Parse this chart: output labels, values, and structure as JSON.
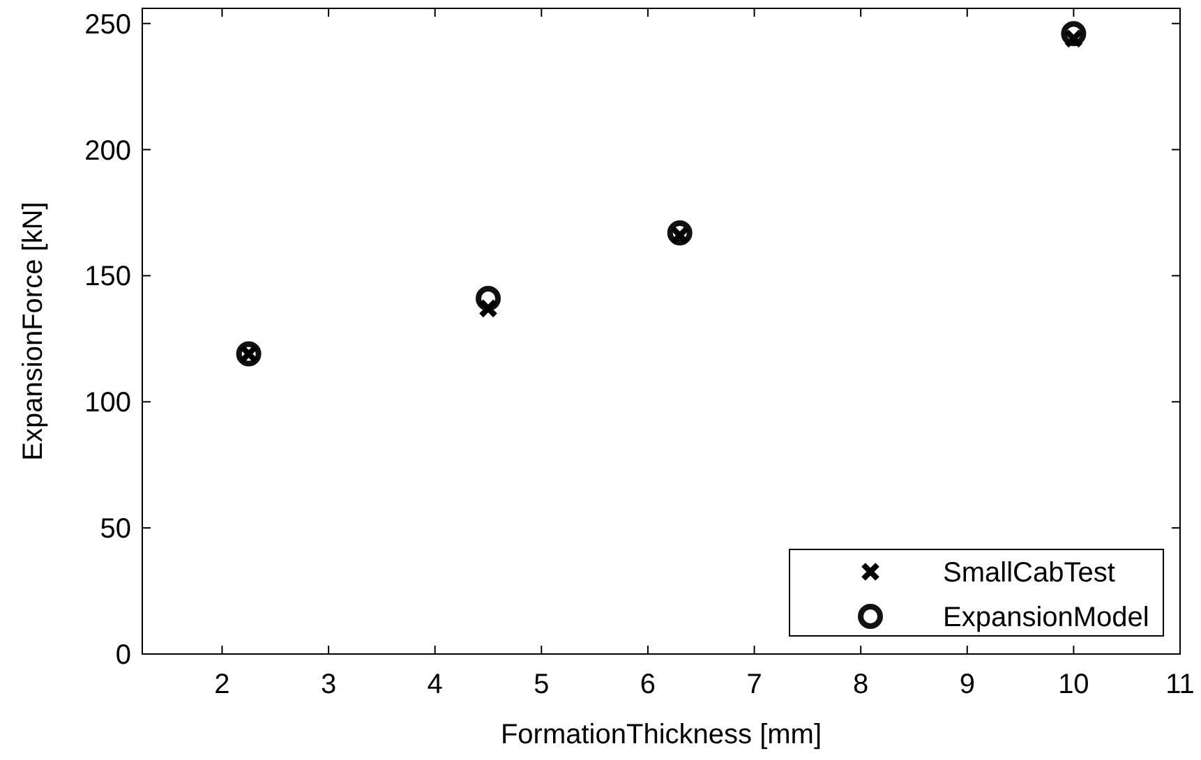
{
  "chart_data": {
    "type": "scatter",
    "xlabel": "FormationThickness [mm]",
    "ylabel": "ExpansionForce [kN]",
    "x": [
      2.25,
      4.5,
      6.3,
      10
    ],
    "series": [
      {
        "name": "SmallCabTest",
        "color": "#000000",
        "marker": "cross",
        "values": [
          119,
          137,
          166,
          244
        ]
      },
      {
        "name": "ExpansionModel",
        "color": "#111111",
        "marker": "circle",
        "values": [
          119,
          141,
          167,
          246
        ]
      }
    ],
    "xlim": [
      1.25,
      11
    ],
    "xticks": [
      2,
      3,
      4,
      5,
      6,
      7,
      8,
      9,
      10,
      11
    ],
    "ylim": [
      0,
      256
    ],
    "yticks": [
      0,
      50,
      100,
      150,
      200,
      250
    ],
    "grid": false,
    "legend": "bottom right"
  }
}
